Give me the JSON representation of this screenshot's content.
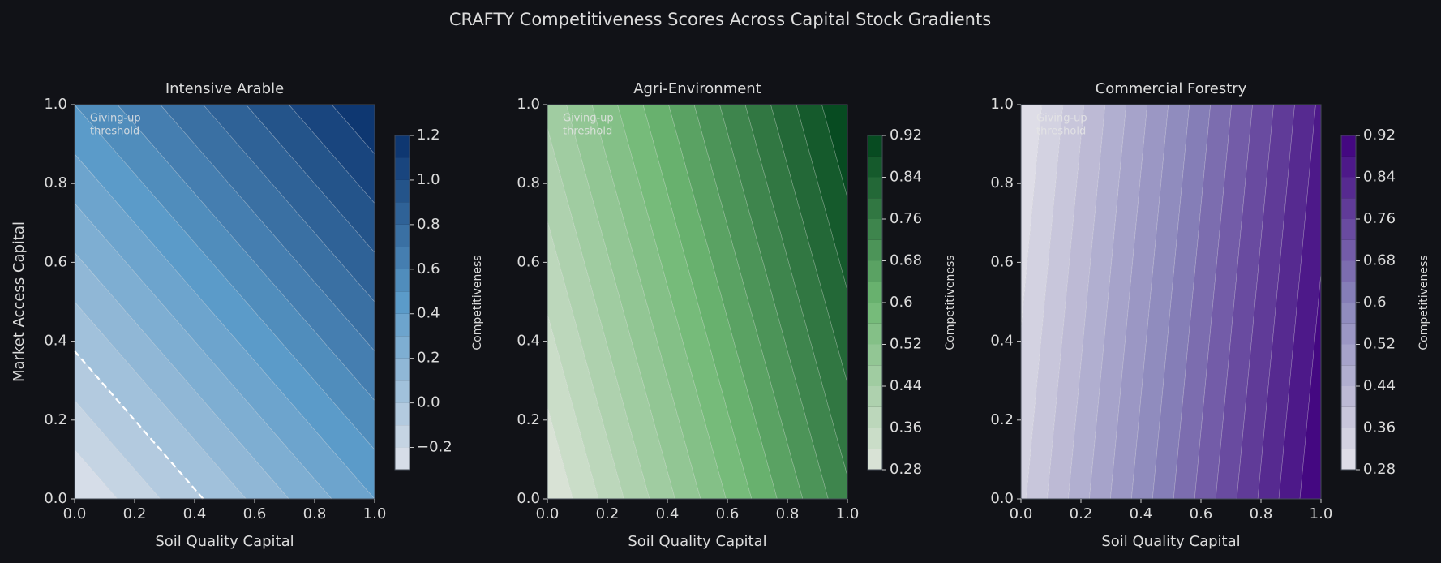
{
  "title": "CRAFTY Competitiveness Scores Across Capital Stock Gradients",
  "chart_data": [
    {
      "type": "contour",
      "title": "Intensive Arable",
      "xlabel": "Soil Quality Capital",
      "ylabel": "Market Access Capital",
      "xlim": [
        0,
        1
      ],
      "ylim": [
        0,
        1
      ],
      "xticks": [
        {
          "value": 0,
          "label": "0.0"
        },
        0.2,
        0.4,
        0.6,
        0.8,
        {
          "value": 1,
          "label": "1.0"
        }
      ],
      "yticks": [
        {
          "value": 0,
          "label": "0.0"
        },
        0.2,
        0.4,
        0.6,
        0.8,
        {
          "value": 1,
          "label": "1.0"
        }
      ],
      "z": [
        [
          -0.3,
          0.4
        ],
        [
          0.5,
          1.2
        ]
      ],
      "levels": [
        -0.3,
        -0.2,
        -0.1,
        0,
        0.1,
        0.2,
        0.3,
        0.4,
        0.5,
        0.6,
        0.7,
        0.8,
        0.9,
        1.0,
        1.1,
        1.2
      ],
      "colors": [
        "#dfe2ea",
        "#5b9bc9",
        "#08306b"
      ],
      "colorbar_label": "Competitiveness",
      "colorbar_ticks": [
        {
          "value": -0.2,
          "label": "−0.2"
        },
        {
          "value": 0,
          "label": "0.0"
        },
        0.2,
        0.4,
        0.6,
        0.8,
        {
          "value": 1.0,
          "label": "1.0"
        },
        1.2
      ],
      "threshold": 0,
      "annotation": [
        "Giving-up",
        "threshold"
      ]
    },
    {
      "type": "contour",
      "title": "Agri-Environment",
      "xlabel": "Soil Quality Capital",
      "xlim": [
        0,
        1
      ],
      "ylim": [
        0,
        1
      ],
      "xticks": [
        {
          "value": 0,
          "label": "0.0"
        },
        0.2,
        0.4,
        0.6,
        0.8,
        {
          "value": 1,
          "label": "1.0"
        }
      ],
      "yticks": [
        {
          "value": 0,
          "label": "0.0"
        },
        0.2,
        0.4,
        0.6,
        0.8,
        {
          "value": 1,
          "label": "1.0"
        }
      ],
      "z": [
        [
          0.28,
          0.75
        ],
        [
          0.45,
          0.92
        ]
      ],
      "levels": [
        0.28,
        0.32,
        0.36,
        0.4,
        0.44,
        0.48,
        0.52,
        0.56,
        0.6,
        0.64,
        0.68,
        0.72,
        0.76,
        0.8,
        0.84,
        0.88,
        0.92
      ],
      "colors": [
        "#dfe5dc",
        "#6fb873",
        "#00441b"
      ],
      "colorbar_label": "Competitiveness",
      "colorbar_ticks": [
        0.28,
        0.36,
        0.44,
        0.52,
        0.6,
        0.68,
        0.76,
        0.84,
        0.92
      ],
      "annotation": [
        "Giving-up",
        "threshold"
      ]
    },
    {
      "type": "contour",
      "title": "Commercial Forestry",
      "xlabel": "Soil Quality Capital",
      "xlim": [
        0,
        1
      ],
      "ylim": [
        0,
        1
      ],
      "xticks": [
        {
          "value": 0,
          "label": "0.0"
        },
        0.2,
        0.4,
        0.6,
        0.8,
        {
          "value": 1,
          "label": "1.0"
        }
      ],
      "yticks": [
        {
          "value": 0,
          "label": "0.0"
        },
        0.2,
        0.4,
        0.6,
        0.8,
        {
          "value": 1,
          "label": "1.0"
        }
      ],
      "z": [
        [
          0.35,
          0.92
        ],
        [
          0.28,
          0.85
        ]
      ],
      "levels": [
        0.28,
        0.32,
        0.36,
        0.4,
        0.44,
        0.48,
        0.52,
        0.56,
        0.6,
        0.64,
        0.68,
        0.72,
        0.76,
        0.8,
        0.84,
        0.88,
        0.92
      ],
      "colors": [
        "#e4e3ea",
        "#8a86bb",
        "#3f007d"
      ],
      "colorbar_label": "Competitiveness",
      "colorbar_ticks": [
        0.28,
        0.36,
        0.44,
        0.52,
        0.6,
        0.68,
        0.76,
        0.84,
        0.92
      ],
      "annotation": [
        "Giving-up",
        "threshold"
      ]
    }
  ]
}
